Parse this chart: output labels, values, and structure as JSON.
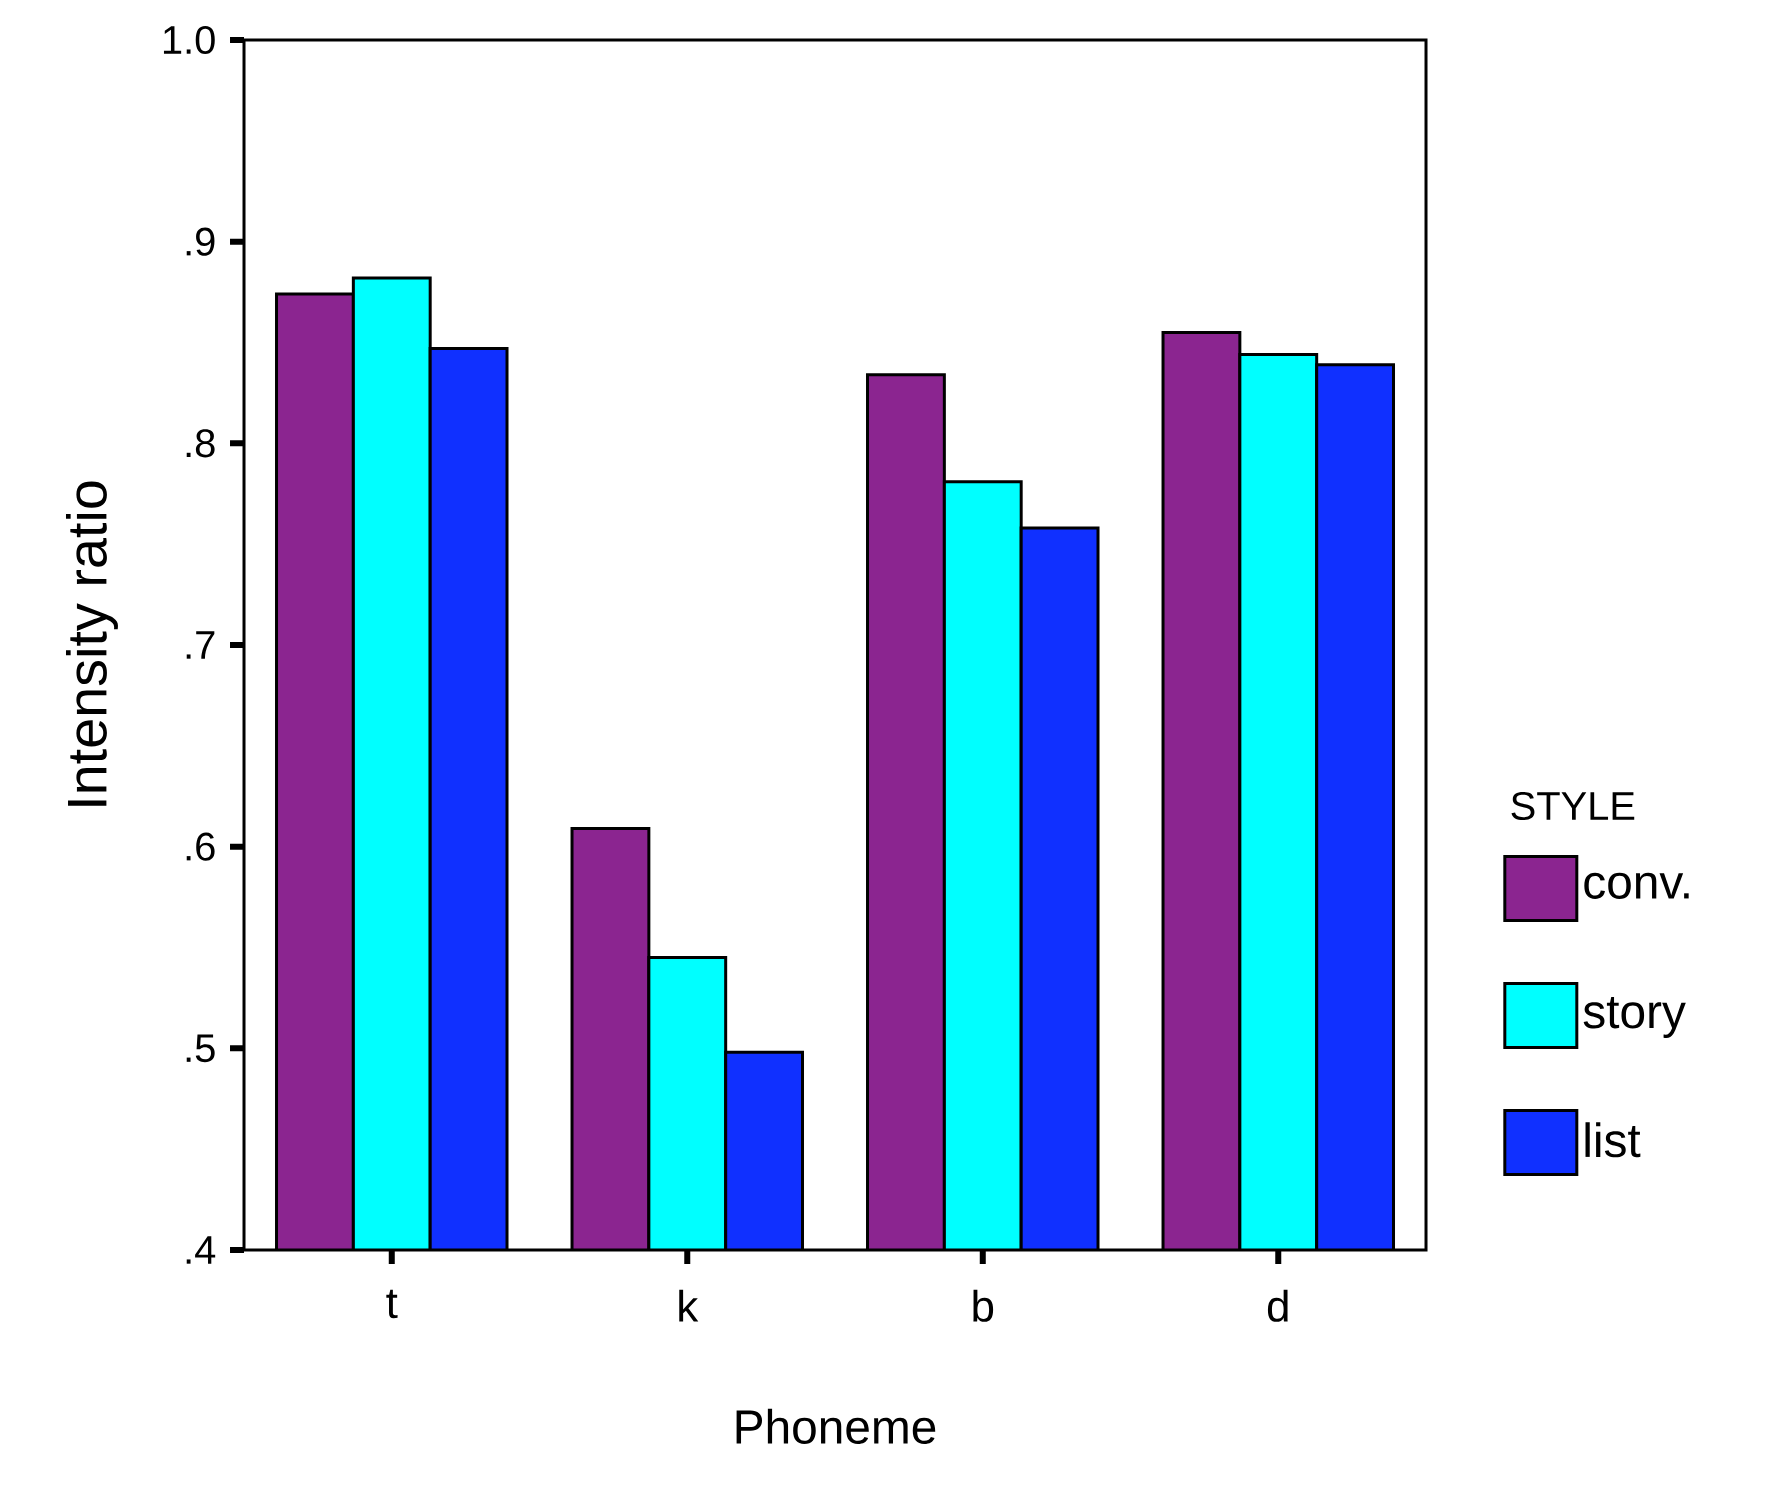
{
  "chart_data": {
    "type": "bar",
    "xlabel": "Phoneme",
    "ylabel": "Intensity ratio",
    "legend_title": "STYLE",
    "categories": [
      "t",
      "k",
      "b",
      "d"
    ],
    "series": [
      {
        "name": "conv.",
        "color": "#8b2590",
        "values": [
          0.874,
          0.609,
          0.834,
          0.855
        ]
      },
      {
        "name": "story",
        "color": "#00ffff",
        "values": [
          0.882,
          0.545,
          0.781,
          0.844
        ]
      },
      {
        "name": "list",
        "color": "#1030ff",
        "values": [
          0.847,
          0.498,
          0.758,
          0.839
        ]
      }
    ],
    "ylim": [
      0.4,
      1.0
    ],
    "yticks": [
      {
        "value": 0.4,
        "label": ".4"
      },
      {
        "value": 0.5,
        "label": ".5"
      },
      {
        "value": 0.6,
        "label": ".6"
      },
      {
        "value": 0.7,
        "label": ".7"
      },
      {
        "value": 0.8,
        "label": ".8"
      },
      {
        "value": 0.9,
        "label": ".9"
      },
      {
        "value": 1.0,
        "label": "1.0"
      }
    ],
    "grid": false,
    "legend": "right"
  }
}
